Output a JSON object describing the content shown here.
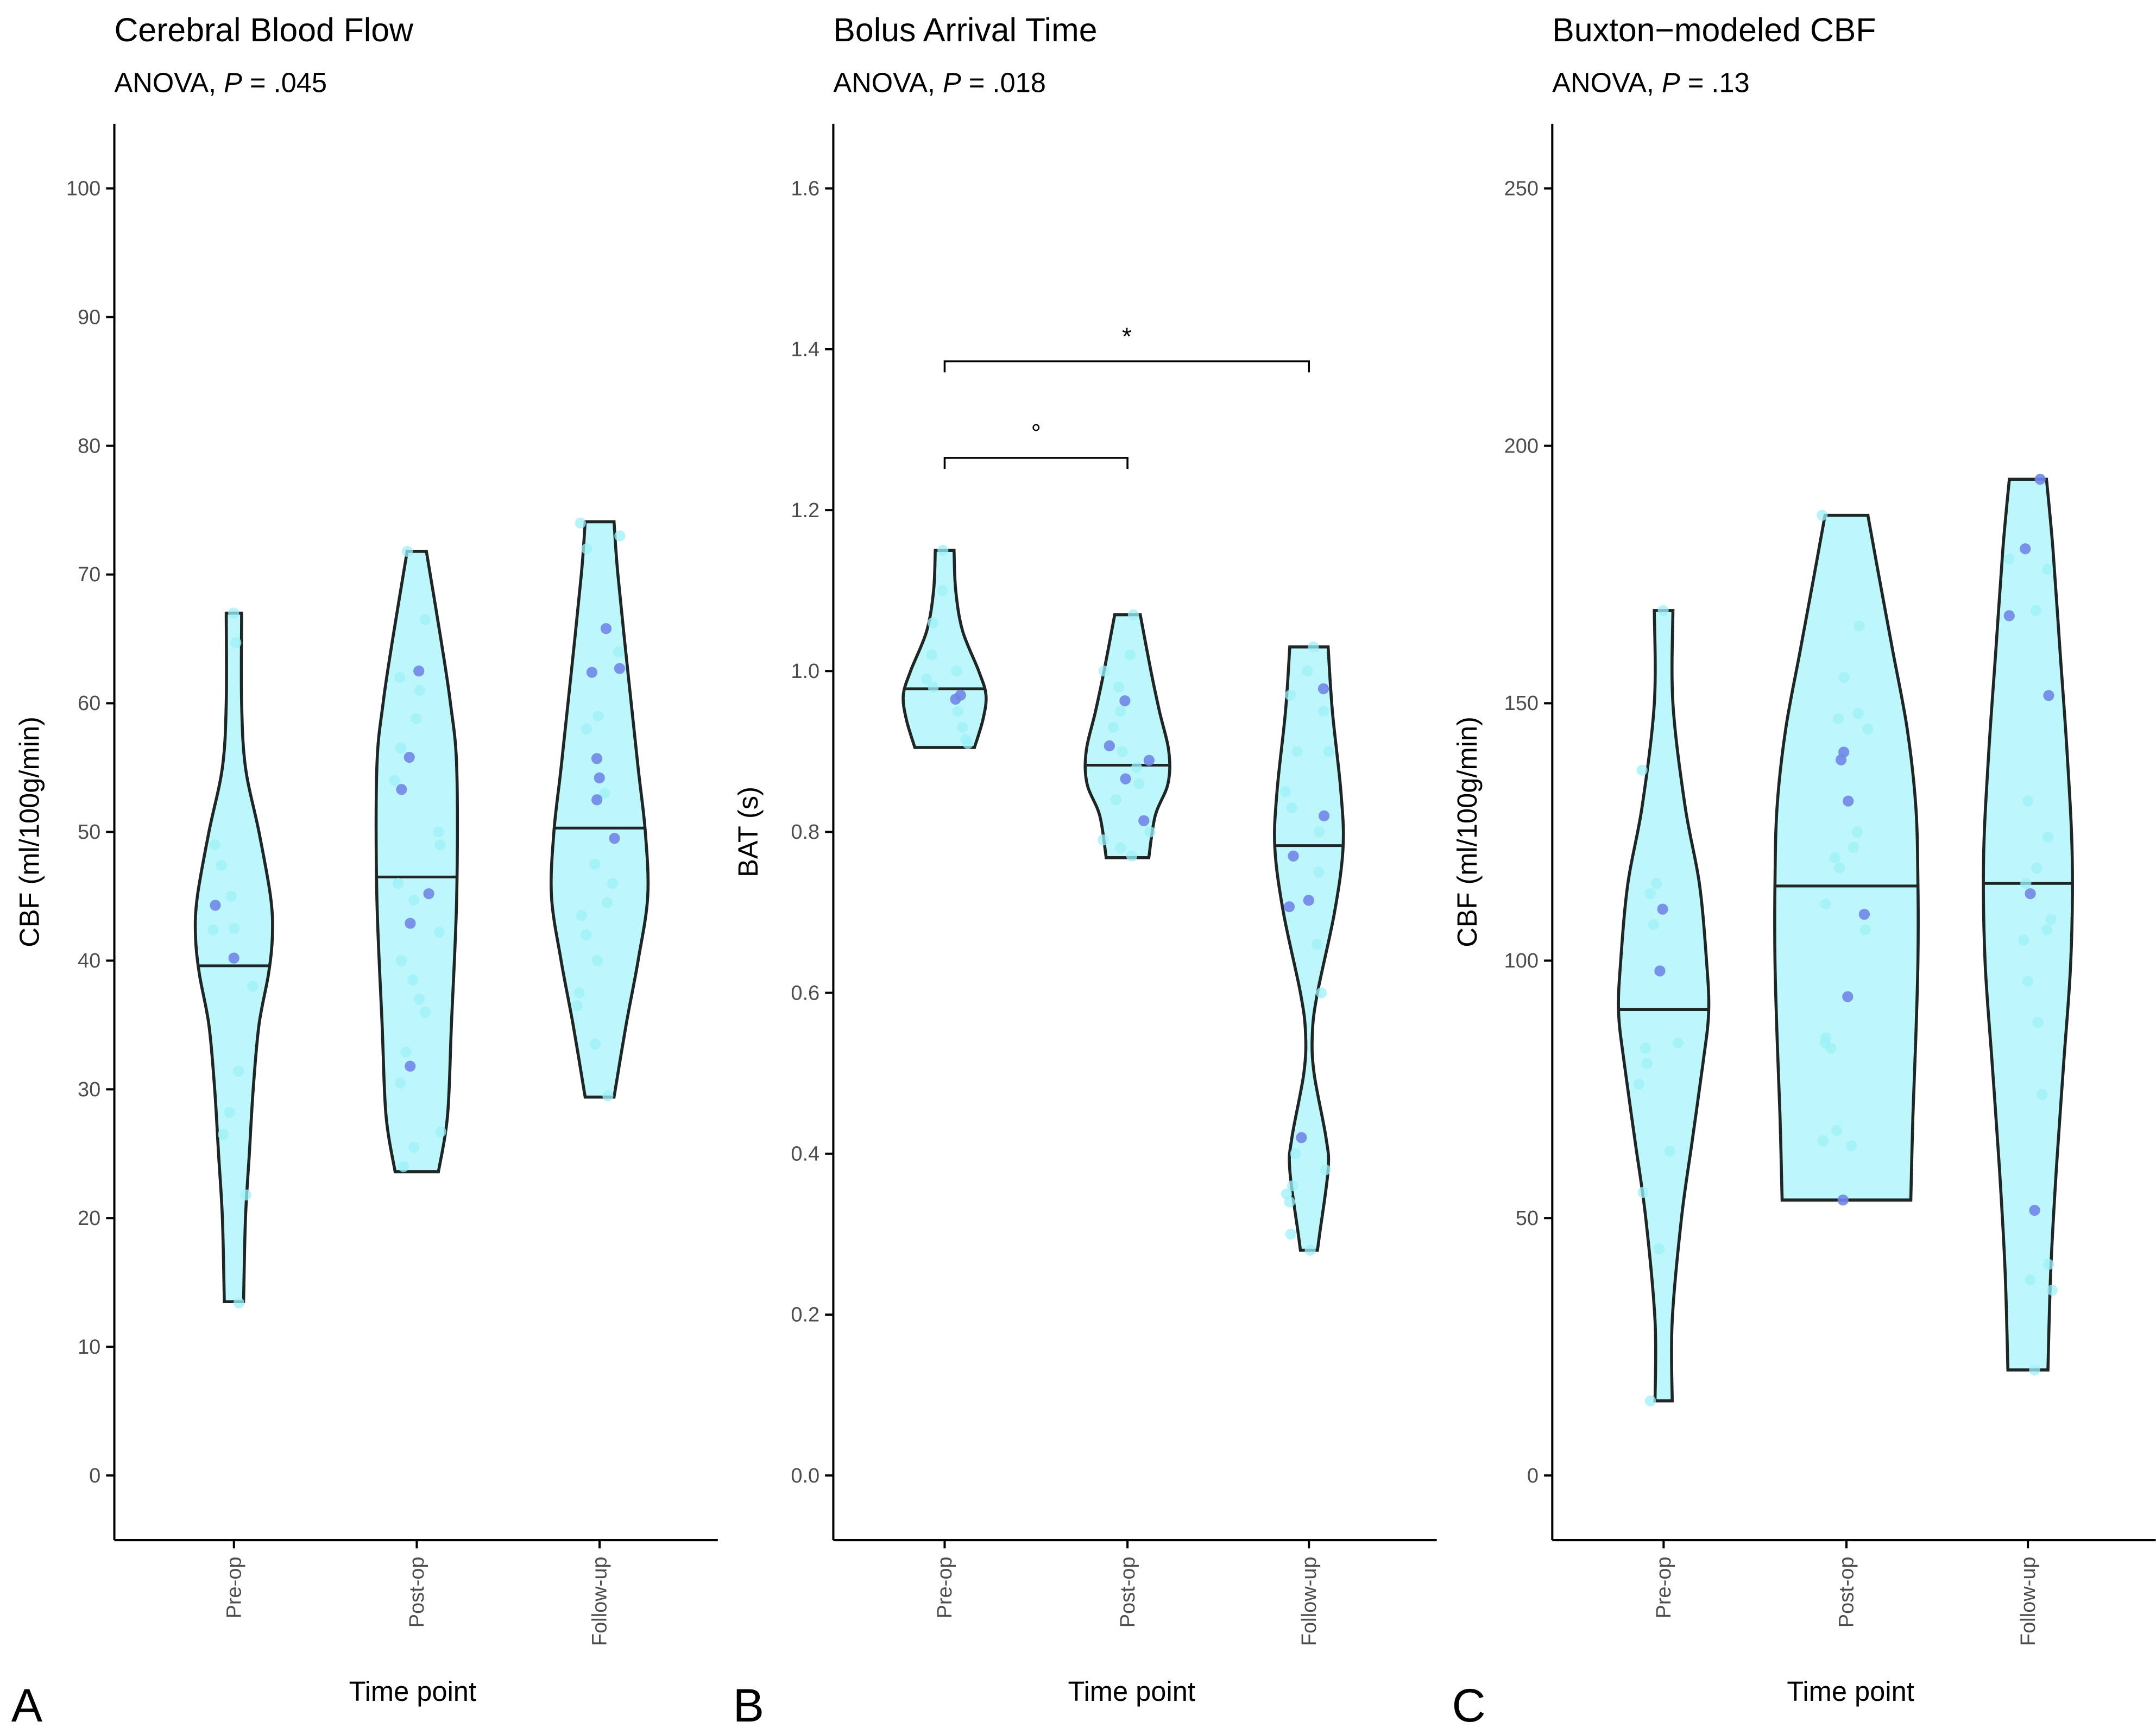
{
  "chart_data": [
    {
      "type": "violin",
      "panel_letter": "A",
      "title": "Cerebral Blood Flow",
      "subtitle_prefix": "ANOVA, ",
      "subtitle_p": "P",
      "subtitle_value": " = .045",
      "xlabel": "Time point",
      "ylabel": "CBF (ml/100g/min)",
      "ylim": [
        -5,
        105
      ],
      "yticks": [
        0,
        10,
        20,
        30,
        40,
        50,
        60,
        70,
        80,
        90,
        100
      ],
      "categories": [
        "Pre-op",
        "Post-op",
        "Follow-up"
      ],
      "groups": [
        {
          "name": "Pre-op",
          "min": 13.5,
          "max": 67,
          "median": 39.6,
          "density_y": [
            13.5,
            20,
            25,
            30,
            35,
            39,
            42,
            45,
            50,
            55,
            60,
            67
          ],
          "density_w": [
            0.2,
            0.24,
            0.32,
            0.4,
            0.52,
            0.72,
            0.8,
            0.76,
            0.52,
            0.24,
            0.16,
            0.16
          ],
          "highlighted": [
            44.3,
            40.2
          ],
          "points": [
            67,
            64.7,
            49,
            47.4,
            45,
            42.5,
            42.4,
            38,
            31.4,
            28.2,
            26.5,
            21.8,
            13.4
          ]
        },
        {
          "name": "Post-op",
          "min": 23.6,
          "max": 71.8,
          "median": 46.5,
          "density_y": [
            23.6,
            28,
            35,
            45,
            55,
            60,
            65,
            71.8
          ],
          "density_w": [
            0.45,
            0.64,
            0.72,
            0.83,
            0.83,
            0.7,
            0.5,
            0.2
          ],
          "highlighted": [
            62.5,
            55.8,
            53.3,
            45.2,
            42.9,
            31.8
          ],
          "points": [
            71.8,
            66.5,
            62,
            61,
            58.8,
            56.5,
            54,
            50,
            49,
            46,
            44.7,
            42.2,
            40,
            38.5,
            37,
            36,
            32.9,
            30.5,
            26.7,
            25.5,
            24
          ]
        },
        {
          "name": "Follow-up",
          "min": 29.4,
          "max": 74.1,
          "median": 50.3,
          "density_y": [
            29.4,
            35,
            40,
            45,
            50,
            55,
            62,
            70,
            74.1
          ],
          "density_w": [
            0.3,
            0.55,
            0.8,
            1.0,
            0.95,
            0.8,
            0.6,
            0.38,
            0.3
          ],
          "highlighted": [
            65.8,
            62.7,
            62.4,
            55.7,
            54.2,
            52.5,
            49.5
          ],
          "points": [
            74,
            73,
            72,
            64,
            59,
            58,
            53,
            47.5,
            46,
            44.5,
            43.5,
            42,
            40,
            37.5,
            36.5,
            33.5,
            29.5
          ]
        }
      ],
      "brackets": []
    },
    {
      "type": "violin",
      "panel_letter": "B",
      "title": "Bolus Arrival Time",
      "subtitle_prefix": "ANOVA, ",
      "subtitle_p": "P",
      "subtitle_value": " = .018",
      "xlabel": "Time point",
      "ylabel": "BAT (s)",
      "ylim": [
        -0.08,
        1.68
      ],
      "yticks": [
        0.0,
        0.2,
        0.4,
        0.6,
        0.8,
        1.0,
        1.2,
        1.4,
        1.6
      ],
      "tick_decimals": 1,
      "categories": [
        "Pre-op",
        "Post-op",
        "Follow-up"
      ],
      "groups": [
        {
          "name": "Pre-op",
          "min": 0.905,
          "max": 1.15,
          "median": 0.978,
          "density_y": [
            0.905,
            0.94,
            0.97,
            1.0,
            1.05,
            1.1,
            1.15
          ],
          "density_w": [
            0.7,
            0.9,
            0.97,
            0.8,
            0.42,
            0.26,
            0.22
          ],
          "highlighted": [
            0.97,
            0.965
          ],
          "points": [
            1.15,
            1.1,
            1.06,
            1.02,
            1.0,
            0.99,
            0.98,
            0.95,
            0.93,
            0.91,
            0.915
          ]
        },
        {
          "name": "Post-op",
          "min": 0.768,
          "max": 1.07,
          "median": 0.883,
          "density_y": [
            0.768,
            0.82,
            0.86,
            0.9,
            0.95,
            1.0,
            1.07
          ],
          "density_w": [
            0.5,
            0.65,
            0.95,
            0.97,
            0.75,
            0.55,
            0.3
          ],
          "highlighted": [
            0.963,
            0.907,
            0.889,
            0.866,
            0.814
          ],
          "points": [
            1.07,
            1.02,
            1.0,
            0.98,
            0.95,
            0.93,
            0.9,
            0.88,
            0.86,
            0.84,
            0.8,
            0.79,
            0.78,
            0.77
          ]
        },
        {
          "name": "Follow-up",
          "min": 0.28,
          "max": 1.03,
          "median": 0.783,
          "density_y": [
            0.28,
            0.3,
            0.38,
            0.42,
            0.5,
            0.55,
            0.6,
            0.7,
            0.78,
            0.85,
            0.95,
            1.03
          ],
          "density_w": [
            0.2,
            0.25,
            0.45,
            0.4,
            0.12,
            0.08,
            0.2,
            0.6,
            0.8,
            0.75,
            0.55,
            0.45
          ],
          "highlighted": [
            0.978,
            0.82,
            0.77,
            0.715,
            0.707,
            0.42
          ],
          "points": [
            1.03,
            1.0,
            0.97,
            0.95,
            0.9,
            0.9,
            0.85,
            0.83,
            0.8,
            0.75,
            0.66,
            0.6,
            0.4,
            0.38,
            0.36,
            0.35,
            0.34,
            0.3,
            0.28
          ]
        }
      ],
      "brackets": [
        {
          "from": "Pre-op",
          "to": "Post-op",
          "y": 1.265,
          "label": "°"
        },
        {
          "from": "Pre-op",
          "to": "Follow-up",
          "y": 1.385,
          "label": "*"
        }
      ]
    },
    {
      "type": "violin",
      "panel_letter": "C",
      "title": "Buxton−modeled CBF",
      "subtitle_prefix": "ANOVA, ",
      "subtitle_p": "P",
      "subtitle_value": " = .13",
      "xlabel": "Time point",
      "ylabel": "CBF (ml/100g/min)",
      "ylim": [
        -12.5,
        262.5
      ],
      "yticks": [
        0,
        50,
        100,
        150,
        200,
        250
      ],
      "categories": [
        "Pre-op",
        "Post-op",
        "Follow-up"
      ],
      "groups": [
        {
          "name": "Pre-op",
          "min": 14.5,
          "max": 168,
          "median": 90.5,
          "density_y": [
            14.5,
            30,
            50,
            65,
            80,
            90,
            100,
            115,
            130,
            150,
            168
          ],
          "density_w": [
            0.12,
            0.12,
            0.25,
            0.4,
            0.55,
            0.63,
            0.6,
            0.5,
            0.3,
            0.13,
            0.13
          ],
          "highlighted": [
            110,
            98
          ],
          "points": [
            168,
            137,
            115,
            113,
            107,
            84,
            83,
            80,
            76,
            63,
            55,
            44,
            14.5
          ]
        },
        {
          "name": "Post-op",
          "min": 53.5,
          "max": 186.5,
          "median": 114.5,
          "density_y": [
            53.5,
            70,
            85,
            100,
            115,
            130,
            145,
            160,
            175,
            186.5
          ],
          "density_w": [
            0.9,
            0.93,
            0.97,
            1.0,
            1.0,
            0.97,
            0.85,
            0.65,
            0.45,
            0.3
          ],
          "highlighted": [
            140.5,
            139,
            131,
            109,
            93,
            53.5
          ],
          "points": [
            186.5,
            165,
            155,
            148,
            147,
            145,
            125,
            122,
            120,
            118,
            111,
            106,
            85,
            84,
            83,
            67,
            65,
            64
          ]
        },
        {
          "name": "Follow-up",
          "min": 20.5,
          "max": 193.5,
          "median": 115,
          "density_y": [
            20.5,
            40,
            60,
            80,
            100,
            120,
            140,
            160,
            180,
            193.5
          ],
          "density_w": [
            0.28,
            0.32,
            0.4,
            0.5,
            0.6,
            0.62,
            0.55,
            0.45,
            0.35,
            0.26
          ],
          "highlighted": [
            193.5,
            180,
            167,
            151.5,
            113,
            51.5
          ],
          "points": [
            178,
            176,
            168,
            131,
            124,
            118,
            115,
            108,
            106,
            104,
            96,
            88,
            74,
            41,
            38,
            36,
            20.5
          ]
        }
      ],
      "brackets": []
    }
  ],
  "colors": {
    "violin_fill": "#bdf7fb",
    "point_light": "#9ef0f8",
    "point_highlight": "#6f86e6",
    "outline": "#1e2626"
  }
}
